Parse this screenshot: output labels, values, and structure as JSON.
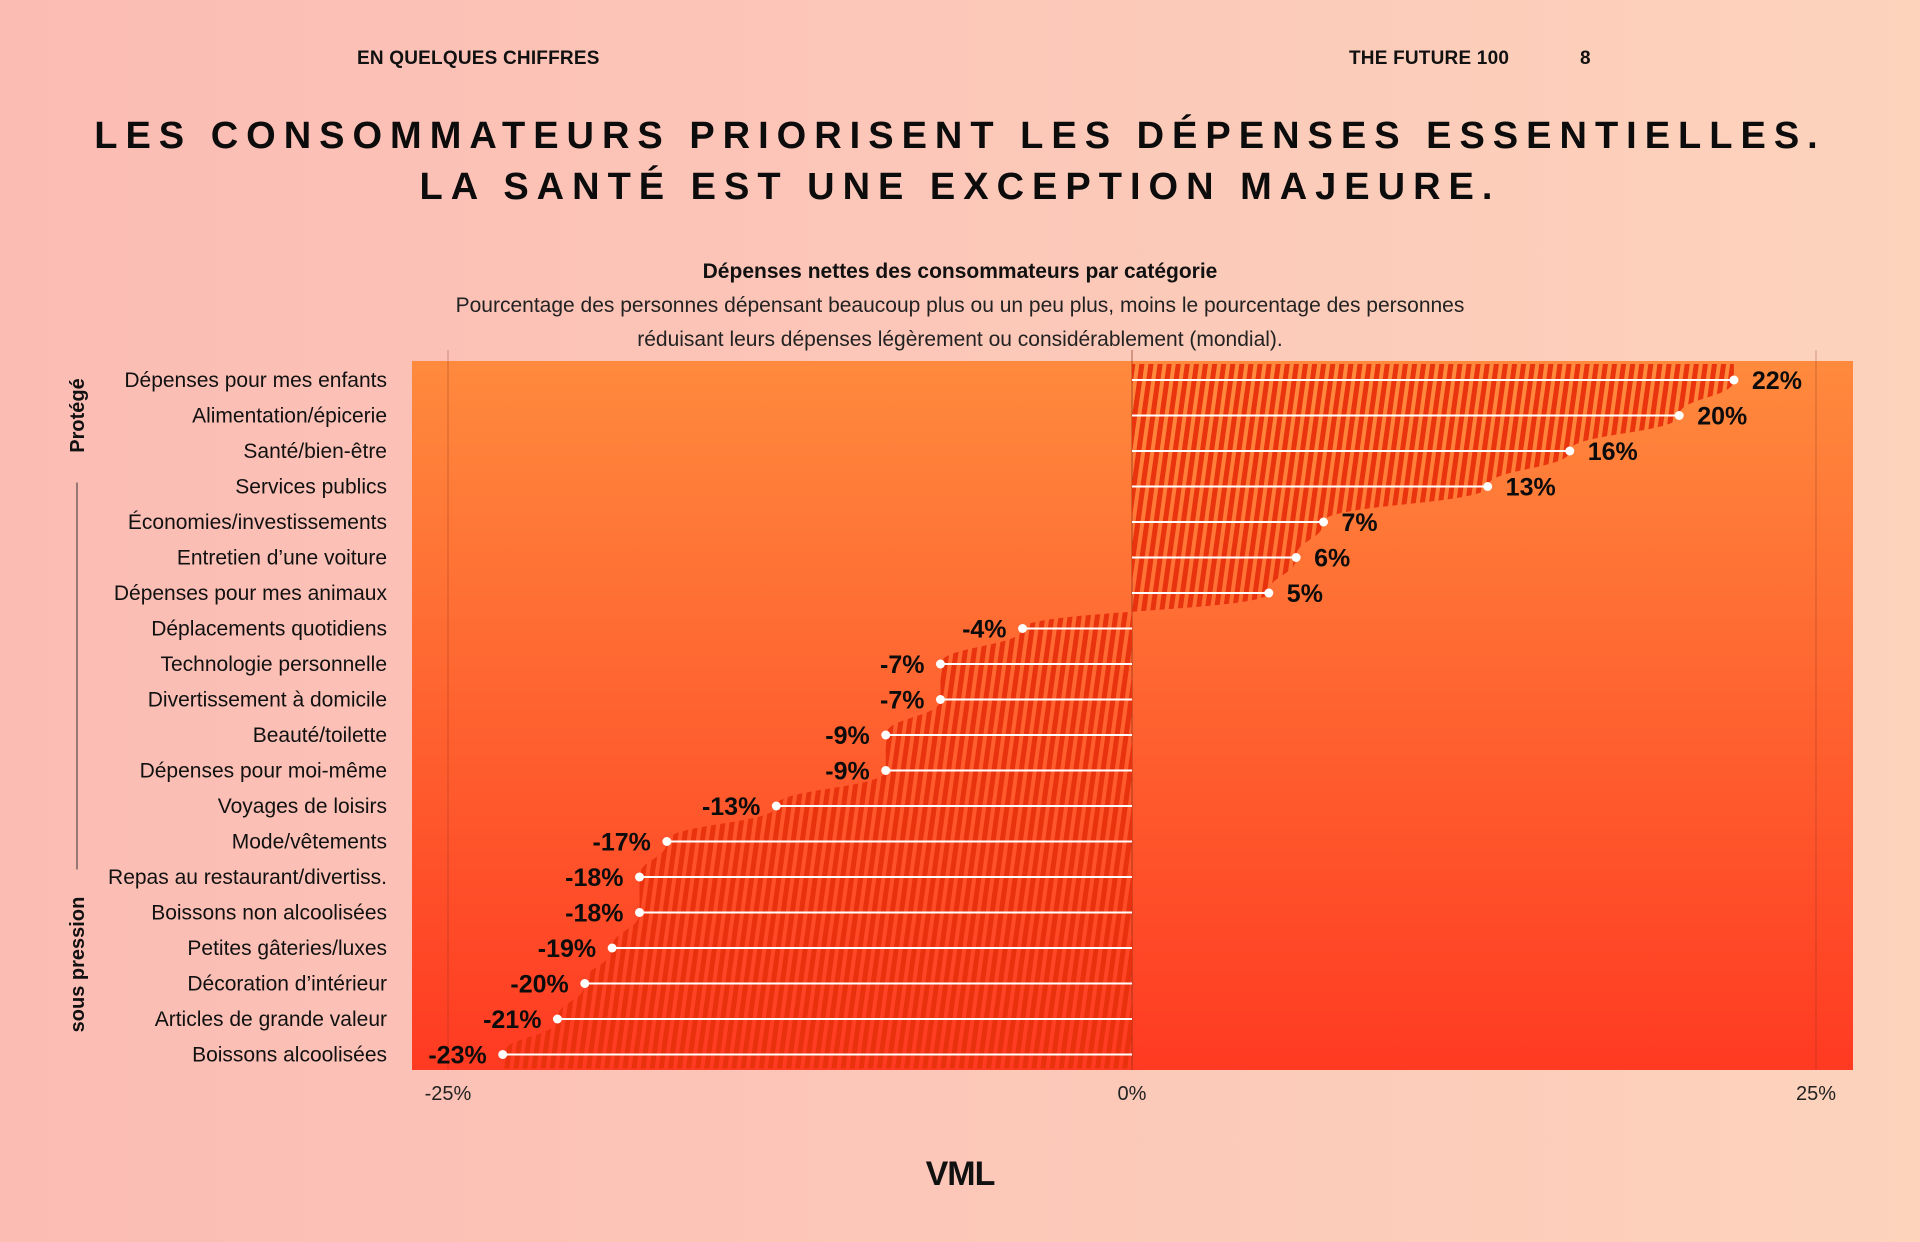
{
  "header": {
    "section": "EN QUELQUES CHIFFRES",
    "publication": "THE FUTURE 100",
    "page_number": "8"
  },
  "title": {
    "line1": "LES CONSOMMATEURS PRIORISENT LES DÉPENSES ESSENTIELLES.",
    "line2": "LA SANTÉ EST UNE EXCEPTION MAJEURE."
  },
  "logo": "VML",
  "colors": {
    "background_left": "#fbbcb4",
    "background_right": "#fdd3bc",
    "plot_top": "#ff8a3d",
    "plot_bottom": "#ff3a22",
    "stripe": "#e8300c",
    "line": "#ffffff",
    "text": "#111111"
  },
  "chart_data": {
    "type": "bar",
    "orientation": "horizontal",
    "title": "Dépenses nettes des consommateurs par catégorie",
    "subtitle_line1": "Pourcentage des personnes dépensant beaucoup plus ou un peu plus, moins le pourcentage des personnes",
    "subtitle_line2": "réduisant leurs dépenses légèrement ou considérablement (mondial).",
    "groups": [
      {
        "label": "Protégé",
        "from": 0,
        "to": 2
      },
      {
        "label": "sous pression",
        "from": 3,
        "to": 19
      }
    ],
    "categories": [
      "Dépenses pour mes enfants",
      "Alimentation/épicerie",
      "Santé/bien-être",
      "Services publics",
      "Économies/investissements",
      "Entretien d’une voiture",
      "Dépenses pour mes animaux",
      "Déplacements quotidiens",
      "Technologie personnelle",
      "Divertissement à domicile",
      "Beauté/toilette",
      "Dépenses pour moi-même",
      "Voyages de loisirs",
      "Mode/vêtements",
      "Repas au restaurant/divertiss.",
      "Boissons non alcoolisées",
      "Petites gâteries/luxes",
      "Décoration d’intérieur",
      "Articles de grande valeur",
      "Boissons alcoolisées"
    ],
    "values": [
      22,
      20,
      16,
      13,
      7,
      6,
      5,
      -4,
      -7,
      -7,
      -9,
      -9,
      -13,
      -17,
      -18,
      -18,
      -19,
      -20,
      -21,
      -23
    ],
    "value_labels": [
      "22%",
      "20%",
      "16%",
      "13%",
      "7%",
      "6%",
      "5%",
      "-4%",
      "-7%",
      "-7%",
      "-9%",
      "-9%",
      "-13%",
      "-17%",
      "-18%",
      "-18%",
      "-19%",
      "-20%",
      "-21%",
      "-23%"
    ],
    "xlim": [
      -25,
      25
    ],
    "xticks": [
      -25,
      0,
      25
    ],
    "xtick_labels": [
      "-25%",
      "0%",
      "25%"
    ],
    "xlabel": "",
    "ylabel": "",
    "grid": true
  }
}
